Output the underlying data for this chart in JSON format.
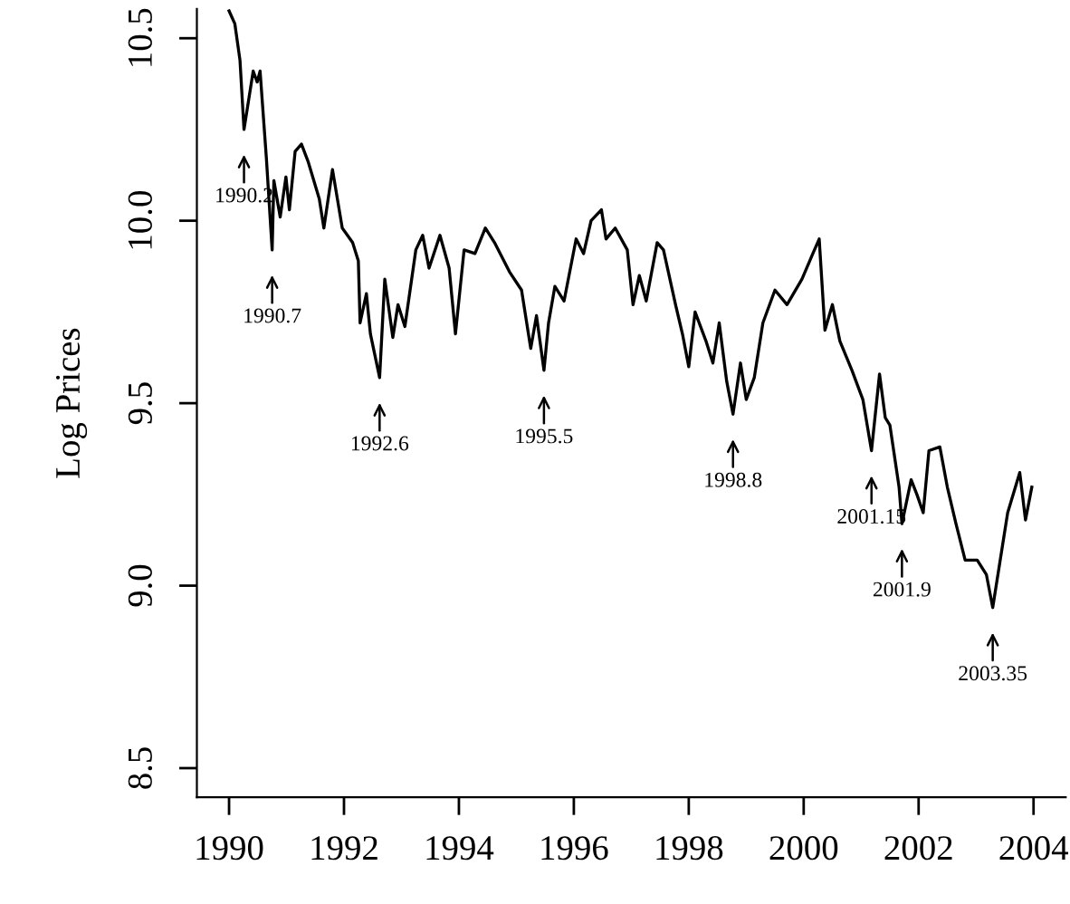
{
  "chart_data": {
    "type": "line",
    "ylabel": "Log Prices",
    "xlim": [
      1989.44,
      2004.56
    ],
    "ylim": [
      8.42,
      10.58
    ],
    "xticks": [
      1990,
      1992,
      1994,
      1996,
      1998,
      2000,
      2002,
      2004
    ],
    "yticks": [
      8.5,
      {
        "value": 9,
        "label": "9.0"
      },
      9.5,
      {
        "value": 10,
        "label": "10.0"
      },
      10.5
    ],
    "grid": false,
    "marker": "none",
    "line_style": "solid",
    "series": [
      {
        "color": "#000000",
        "x": [
          1990.0,
          1990.1,
          1990.19,
          1990.26,
          1990.42,
          1990.49,
          1990.54,
          1990.65,
          1990.75,
          1990.78,
          1990.89,
          1990.99,
          1991.05,
          1991.15,
          1991.26,
          1991.38,
          1991.57,
          1991.65,
          1991.8,
          1991.97,
          1992.15,
          1992.25,
          1992.28,
          1992.39,
          1992.46,
          1992.62,
          1992.71,
          1992.85,
          1992.94,
          1993.06,
          1993.25,
          1993.37,
          1993.48,
          1993.67,
          1993.83,
          1993.94,
          1994.09,
          1994.28,
          1994.46,
          1994.62,
          1994.88,
          1995.09,
          1995.25,
          1995.35,
          1995.48,
          1995.56,
          1995.67,
          1995.83,
          1996.04,
          1996.17,
          1996.3,
          1996.48,
          1996.56,
          1996.72,
          1996.93,
          1997.03,
          1997.14,
          1997.26,
          1997.45,
          1997.56,
          1997.77,
          1997.89,
          1998.0,
          1998.11,
          1998.3,
          1998.42,
          1998.53,
          1998.66,
          1998.77,
          1998.9,
          1999.0,
          1999.14,
          1999.29,
          1999.5,
          1999.71,
          1999.97,
          2000.16,
          2000.27,
          2000.37,
          2000.5,
          2000.63,
          2000.84,
          2001.03,
          2001.18,
          2001.32,
          2001.42,
          2001.5,
          2001.66,
          2001.71,
          2001.87,
          2001.97,
          2002.08,
          2002.18,
          2002.37,
          2002.5,
          2002.65,
          2002.81,
          2003.02,
          2003.18,
          2003.29,
          2003.44,
          2003.55,
          2003.76,
          2003.86,
          2003.97
        ],
        "values": [
          10.575,
          10.54,
          10.44,
          10.25,
          10.41,
          10.38,
          10.41,
          10.17,
          9.92,
          10.11,
          10.01,
          10.12,
          10.03,
          10.19,
          10.21,
          10.16,
          10.06,
          9.98,
          10.14,
          9.98,
          9.94,
          9.89,
          9.72,
          9.8,
          9.69,
          9.57,
          9.84,
          9.68,
          9.77,
          9.71,
          9.92,
          9.96,
          9.87,
          9.96,
          9.87,
          9.69,
          9.92,
          9.91,
          9.98,
          9.94,
          9.86,
          9.81,
          9.65,
          9.74,
          9.59,
          9.72,
          9.82,
          9.78,
          9.95,
          9.91,
          10.0,
          10.03,
          9.95,
          9.98,
          9.92,
          9.77,
          9.85,
          9.78,
          9.94,
          9.92,
          9.77,
          9.69,
          9.6,
          9.75,
          9.67,
          9.61,
          9.72,
          9.56,
          9.47,
          9.61,
          9.51,
          9.57,
          9.72,
          9.81,
          9.77,
          9.84,
          9.91,
          9.95,
          9.7,
          9.77,
          9.67,
          9.59,
          9.51,
          9.37,
          9.58,
          9.46,
          9.44,
          9.27,
          9.17,
          9.29,
          9.25,
          9.2,
          9.37,
          9.38,
          9.27,
          9.17,
          9.07,
          9.07,
          9.03,
          8.94,
          9.09,
          9.2,
          9.31,
          9.18,
          9.27
        ]
      }
    ],
    "annotations": [
      {
        "text": "1990.2",
        "x": 1990.26,
        "y": 10.25
      },
      {
        "text": "1990.7",
        "x": 1990.75,
        "y": 9.92
      },
      {
        "text": "1992.6",
        "x": 1992.62,
        "y": 9.57
      },
      {
        "text": "1995.5",
        "x": 1995.48,
        "y": 9.59
      },
      {
        "text": "1998.8",
        "x": 1998.77,
        "y": 9.47
      },
      {
        "text": "2001.15",
        "x": 2001.18,
        "y": 9.37
      },
      {
        "text": "2001.9",
        "x": 2001.71,
        "y": 9.17
      },
      {
        "text": "2003.35",
        "x": 2003.29,
        "y": 8.94
      }
    ]
  }
}
